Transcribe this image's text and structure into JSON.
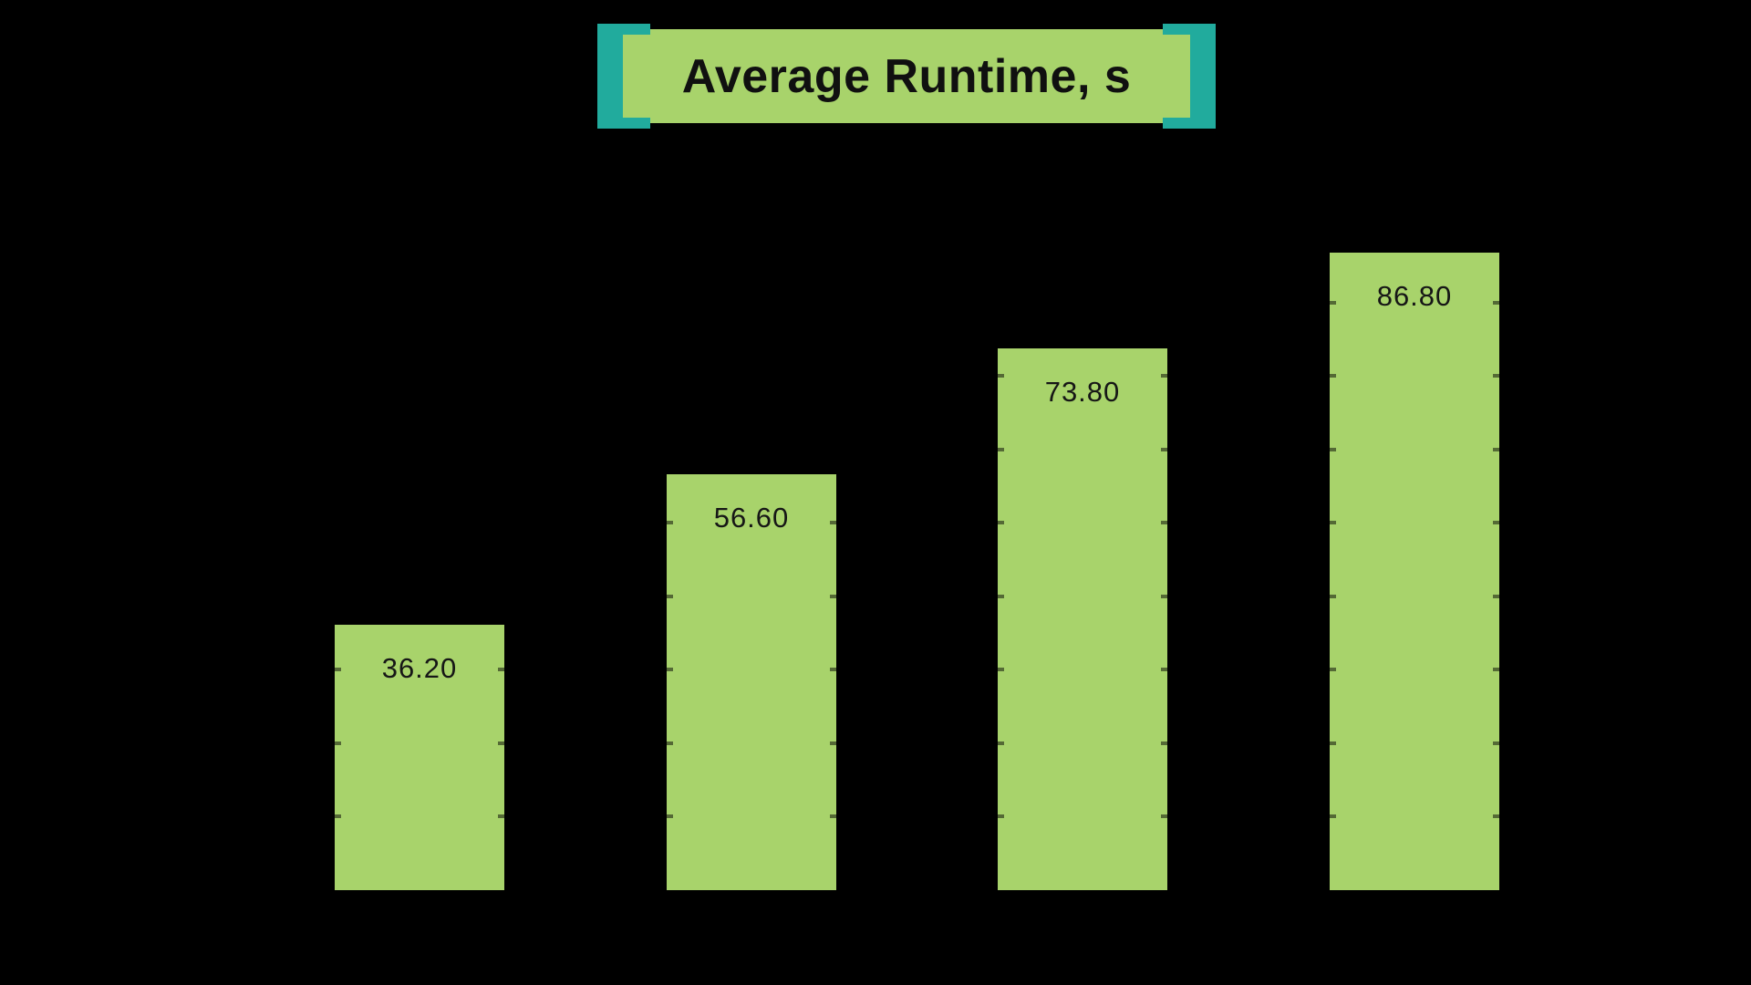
{
  "chart_data": {
    "type": "bar",
    "title": "Average Runtime, s",
    "values": [
      36.2,
      56.6,
      73.8,
      86.8
    ],
    "bar_labels": [
      "36.20",
      "56.60",
      "73.80",
      "86.80"
    ],
    "value_labels_position": "inside-top",
    "gridline_interval": 10,
    "gridline_tick_values": [
      10,
      20,
      30,
      40,
      50,
      60,
      70,
      80
    ],
    "axes_visible": false,
    "legend": null
  },
  "colors": {
    "background": "#000000",
    "bar": "#a8d36b",
    "title_box": "#a8d36b",
    "title_bracket": "#21ab9d",
    "text": "#101010"
  }
}
